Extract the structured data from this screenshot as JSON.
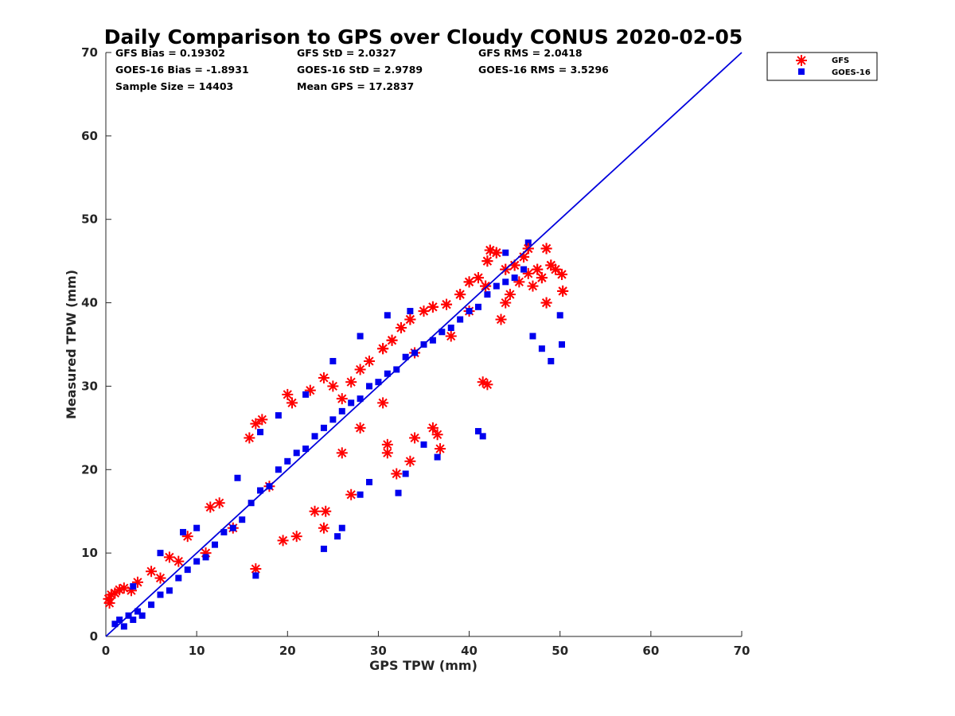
{
  "chart_data": {
    "type": "scatter",
    "title": "Daily Comparison to GPS over Cloudy CONUS 2020-02-05",
    "xlabel": "GPS TPW (mm)",
    "ylabel": "Measured TPW (mm)",
    "xlim": [
      0,
      70
    ],
    "ylim": [
      0,
      70
    ],
    "xticks": [
      "0",
      "10",
      "20",
      "30",
      "40",
      "50",
      "60",
      "70"
    ],
    "yticks": [
      "0",
      "10",
      "20",
      "30",
      "40",
      "50",
      "60",
      "70"
    ],
    "grid": false,
    "legend_position": "outside top-right",
    "stats": [
      [
        "GFS Bias = 0.19302",
        "GFS StD = 2.0327",
        "GFS RMS = 2.0418"
      ],
      [
        "GOES-16 Bias = -1.8931",
        "GOES-16 StD = 2.9789",
        "GOES-16 RMS = 3.5296"
      ],
      [
        "Sample Size = 14403",
        "Mean GPS = 17.2837",
        ""
      ]
    ],
    "reference_line": {
      "color": "#0000dd",
      "x": [
        0,
        70
      ],
      "y": [
        0,
        70
      ]
    },
    "series": [
      {
        "name": "GFS",
        "marker": "asterisk",
        "color": "#ff0000",
        "points": [
          [
            0.3,
            4.5
          ],
          [
            0.6,
            5.0
          ],
          [
            1.0,
            5.2
          ],
          [
            1.5,
            5.6
          ],
          [
            2.0,
            5.8
          ],
          [
            2.8,
            5.5
          ],
          [
            0.4,
            4.0
          ],
          [
            3.5,
            6.5
          ],
          [
            5.0,
            7.8
          ],
          [
            7.0,
            9.5
          ],
          [
            9.0,
            12.0
          ],
          [
            11.5,
            15.5
          ],
          [
            12.5,
            16.0
          ],
          [
            15.8,
            23.8
          ],
          [
            16.5,
            25.5
          ],
          [
            17.2,
            26.0
          ],
          [
            16.5,
            8.1
          ],
          [
            19.5,
            11.5
          ],
          [
            21.0,
            12.0
          ],
          [
            20.0,
            29.0
          ],
          [
            20.5,
            28.0
          ],
          [
            22.5,
            29.5
          ],
          [
            24.0,
            31.0
          ],
          [
            24.0,
            13.0
          ],
          [
            24.2,
            15.0
          ],
          [
            25.0,
            30.0
          ],
          [
            26.0,
            28.5
          ],
          [
            27.0,
            30.5
          ],
          [
            28.0,
            32.0
          ],
          [
            29.0,
            33.0
          ],
          [
            30.5,
            34.5
          ],
          [
            31.5,
            35.5
          ],
          [
            32.5,
            37.0
          ],
          [
            33.5,
            38.0
          ],
          [
            35.0,
            39.0
          ],
          [
            36.0,
            39.5
          ],
          [
            37.5,
            39.8
          ],
          [
            39.0,
            41.0
          ],
          [
            40.0,
            42.5
          ],
          [
            41.0,
            43.0
          ],
          [
            41.8,
            42.0
          ],
          [
            42.0,
            45.0
          ],
          [
            42.3,
            46.3
          ],
          [
            43.0,
            46.0
          ],
          [
            44.0,
            44.0
          ],
          [
            45.0,
            44.5
          ],
          [
            46.0,
            45.5
          ],
          [
            46.5,
            46.5
          ],
          [
            47.5,
            44.0
          ],
          [
            48.0,
            43.0
          ],
          [
            48.5,
            46.5
          ],
          [
            49.0,
            44.5
          ],
          [
            49.5,
            44.0
          ],
          [
            50.2,
            43.4
          ],
          [
            50.3,
            41.4
          ],
          [
            48.5,
            40.0
          ],
          [
            47.0,
            42.0
          ],
          [
            44.5,
            41.0
          ],
          [
            43.5,
            38.0
          ],
          [
            41.5,
            30.5
          ],
          [
            42.0,
            30.2
          ],
          [
            31.0,
            22.0
          ],
          [
            31.0,
            23.0
          ],
          [
            32.0,
            19.5
          ],
          [
            33.5,
            21.0
          ],
          [
            34.0,
            23.8
          ],
          [
            36.0,
            25.0
          ],
          [
            36.5,
            24.2
          ],
          [
            36.8,
            22.5
          ],
          [
            30.5,
            28.0
          ],
          [
            28.0,
            25.0
          ],
          [
            26.0,
            22.0
          ],
          [
            23.0,
            15.0
          ],
          [
            27.0,
            17.0
          ],
          [
            18.0,
            18.0
          ],
          [
            14.0,
            13.0
          ],
          [
            11.0,
            10.0
          ],
          [
            8.0,
            9.0
          ],
          [
            6.0,
            7.0
          ],
          [
            34.0,
            34.0
          ],
          [
            38.0,
            36.0
          ],
          [
            40.0,
            39.0
          ],
          [
            44.0,
            40.0
          ],
          [
            45.5,
            42.5
          ],
          [
            46.5,
            43.5
          ]
        ]
      },
      {
        "name": "GOES-16",
        "marker": "square",
        "color": "#0000ee",
        "points": [
          [
            1.0,
            1.5
          ],
          [
            1.5,
            2.0
          ],
          [
            2.0,
            1.2
          ],
          [
            2.5,
            2.5
          ],
          [
            3.0,
            2.0
          ],
          [
            3.5,
            3.0
          ],
          [
            4.0,
            2.5
          ],
          [
            5.0,
            3.8
          ],
          [
            6.0,
            5.0
          ],
          [
            7.0,
            5.5
          ],
          [
            8.0,
            7.0
          ],
          [
            9.0,
            8.0
          ],
          [
            10.0,
            9.0
          ],
          [
            11.0,
            9.5
          ],
          [
            12.0,
            11.0
          ],
          [
            13.0,
            12.5
          ],
          [
            14.0,
            13.0
          ],
          [
            15.0,
            14.0
          ],
          [
            16.0,
            16.0
          ],
          [
            17.0,
            17.5
          ],
          [
            18.0,
            18.0
          ],
          [
            19.0,
            20.0
          ],
          [
            20.0,
            21.0
          ],
          [
            21.0,
            22.0
          ],
          [
            22.0,
            22.5
          ],
          [
            23.0,
            24.0
          ],
          [
            24.0,
            25.0
          ],
          [
            25.0,
            26.0
          ],
          [
            26.0,
            27.0
          ],
          [
            27.0,
            28.0
          ],
          [
            28.0,
            28.5
          ],
          [
            29.0,
            30.0
          ],
          [
            30.0,
            30.5
          ],
          [
            31.0,
            31.5
          ],
          [
            32.0,
            32.0
          ],
          [
            33.0,
            33.5
          ],
          [
            34.0,
            34.0
          ],
          [
            35.0,
            35.0
          ],
          [
            36.0,
            35.5
          ],
          [
            37.0,
            36.5
          ],
          [
            38.0,
            37.0
          ],
          [
            39.0,
            38.0
          ],
          [
            40.0,
            39.0
          ],
          [
            41.0,
            39.5
          ],
          [
            42.0,
            41.0
          ],
          [
            43.0,
            42.0
          ],
          [
            44.0,
            42.5
          ],
          [
            45.0,
            43.0
          ],
          [
            46.0,
            44.0
          ],
          [
            46.5,
            47.2
          ],
          [
            44.0,
            46.0
          ],
          [
            47.0,
            36.0
          ],
          [
            48.0,
            34.5
          ],
          [
            49.0,
            33.0
          ],
          [
            50.0,
            38.5
          ],
          [
            50.2,
            35.0
          ],
          [
            41.5,
            24.0
          ],
          [
            41.0,
            24.6
          ],
          [
            32.2,
            17.2
          ],
          [
            33.0,
            19.5
          ],
          [
            35.0,
            23.0
          ],
          [
            36.5,
            21.5
          ],
          [
            24.0,
            10.5
          ],
          [
            25.5,
            12.0
          ],
          [
            26.0,
            13.0
          ],
          [
            16.5,
            7.3
          ],
          [
            28.0,
            17.0
          ],
          [
            29.0,
            18.5
          ],
          [
            3.0,
            6.0
          ],
          [
            6.0,
            10.0
          ],
          [
            8.5,
            12.5
          ],
          [
            10.0,
            13.0
          ],
          [
            14.5,
            19.0
          ],
          [
            17.0,
            24.5
          ],
          [
            19.0,
            26.5
          ],
          [
            22.0,
            29.0
          ],
          [
            25.0,
            33.0
          ],
          [
            28.0,
            36.0
          ],
          [
            31.0,
            38.5
          ],
          [
            33.5,
            39.0
          ]
        ]
      }
    ]
  }
}
